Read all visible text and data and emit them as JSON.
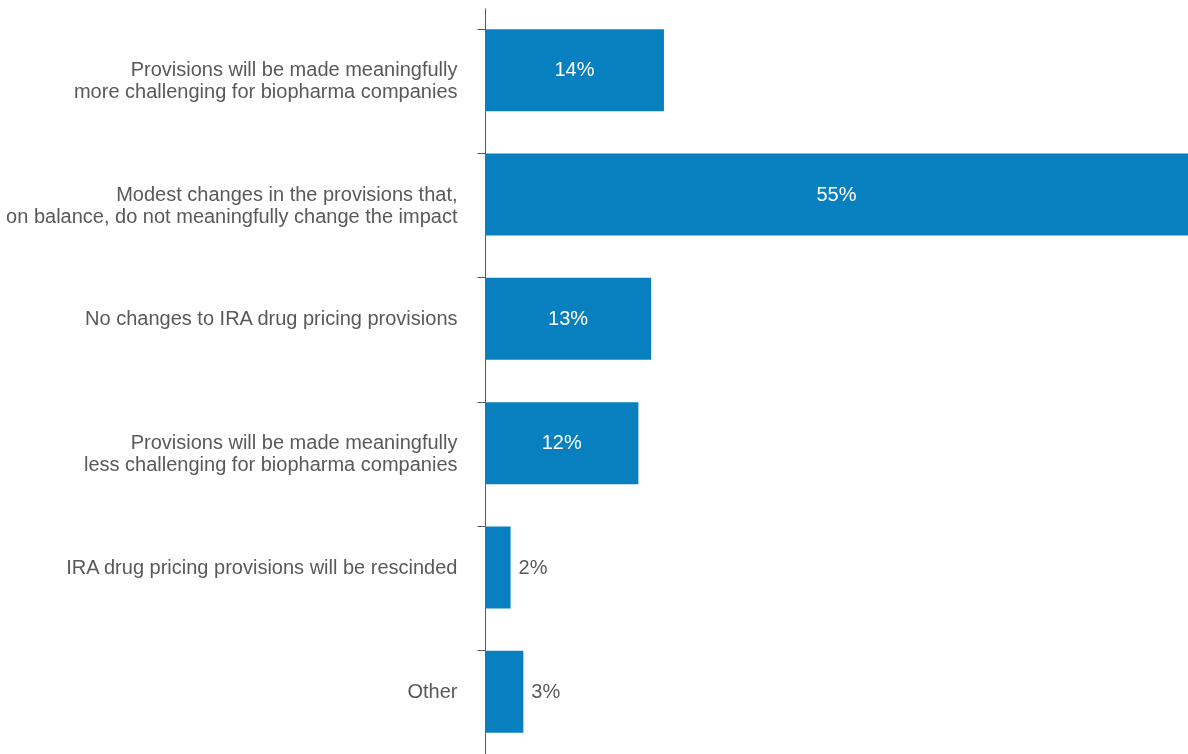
{
  "chart_data": {
    "type": "bar",
    "orientation": "horizontal",
    "categories": [
      "Provisions will be made meaningfully\nmore challenging for biopharma companies",
      "Modest changes in the provisions that,\non balance, do not meaningfully change the impact",
      "No changes to IRA drug pricing provisions",
      "Provisions will be made meaningfully\nless challenging for biopharma companies",
      "IRA drug pricing provisions will be rescinded",
      "Other"
    ],
    "values": [
      14,
      55,
      13,
      12,
      2,
      3
    ],
    "value_labels": [
      "14%",
      "55%",
      "13%",
      "12%",
      "2%",
      "3%"
    ],
    "color": "#0880c0",
    "tick_labels": "y"
  }
}
